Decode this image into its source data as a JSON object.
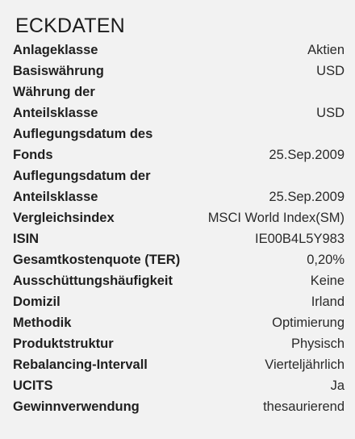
{
  "section": {
    "title": "ECKDATEN"
  },
  "rows": [
    {
      "label": "Anlageklasse",
      "value": "Aktien"
    },
    {
      "label": "Basiswährung",
      "value": "USD"
    },
    {
      "label": "Währung der\nAnteilsklasse",
      "value": "USD"
    },
    {
      "label": "Auflegungsdatum des\nFonds",
      "value": "25.Sep.2009"
    },
    {
      "label": "Auflegungsdatum der\nAnteilsklasse",
      "value": "25.Sep.2009"
    },
    {
      "label": "Vergleichsindex",
      "value": "MSCI World Index(SM)"
    },
    {
      "label": "ISIN",
      "value": "IE00B4L5Y983"
    },
    {
      "label": "Gesamtkostenquote (TER)",
      "value": "0,20%"
    },
    {
      "label": "Ausschüttungshäufigkeit",
      "value": "Keine"
    },
    {
      "label": "Domizil",
      "value": "Irland"
    },
    {
      "label": "Methodik",
      "value": "Optimierung"
    },
    {
      "label": "Produktstruktur",
      "value": "Physisch"
    },
    {
      "label": "Rebalancing-Intervall",
      "value": "Vierteljährlich"
    },
    {
      "label": "UCITS",
      "value": "Ja"
    },
    {
      "label": "Gewinnverwendung",
      "value": "thesaurierend"
    }
  ]
}
